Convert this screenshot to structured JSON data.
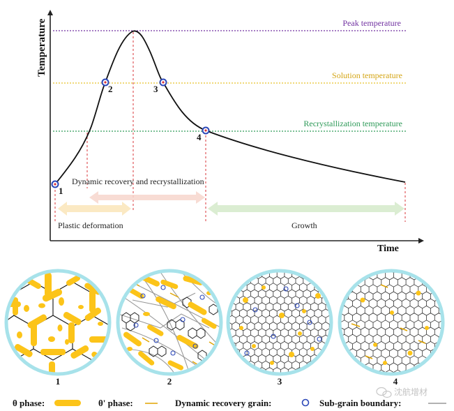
{
  "graph": {
    "y_axis_label": "Temperature",
    "x_axis_label": "Time",
    "lines": {
      "peak": "Peak temperature",
      "solution": "Solution temperature",
      "recrystallization": "Recrystallization temperature"
    },
    "points": [
      "1",
      "2",
      "3",
      "4"
    ],
    "stages": {
      "recovery": "Dynamic recovery and  recrystallization",
      "plastic": "Plastic deformation",
      "growth": "Growth"
    }
  },
  "microstructures": [
    "1",
    "2",
    "3",
    "4"
  ],
  "legend": {
    "theta": "θ phase:",
    "theta_prime": "θ' phase:",
    "recovery_grain": "Dynamic recovery grain:",
    "subgrain": "Sub-grain boundary:"
  },
  "watermark": "沈航增材",
  "colors": {
    "peak": "#7030a0",
    "solution": "#e6c229",
    "recrystallization": "#2e9a58",
    "guide": "#d9343a",
    "theta": "#fcc419",
    "circle_border": "#a7e2ea",
    "marker": "#2b47b8"
  }
}
